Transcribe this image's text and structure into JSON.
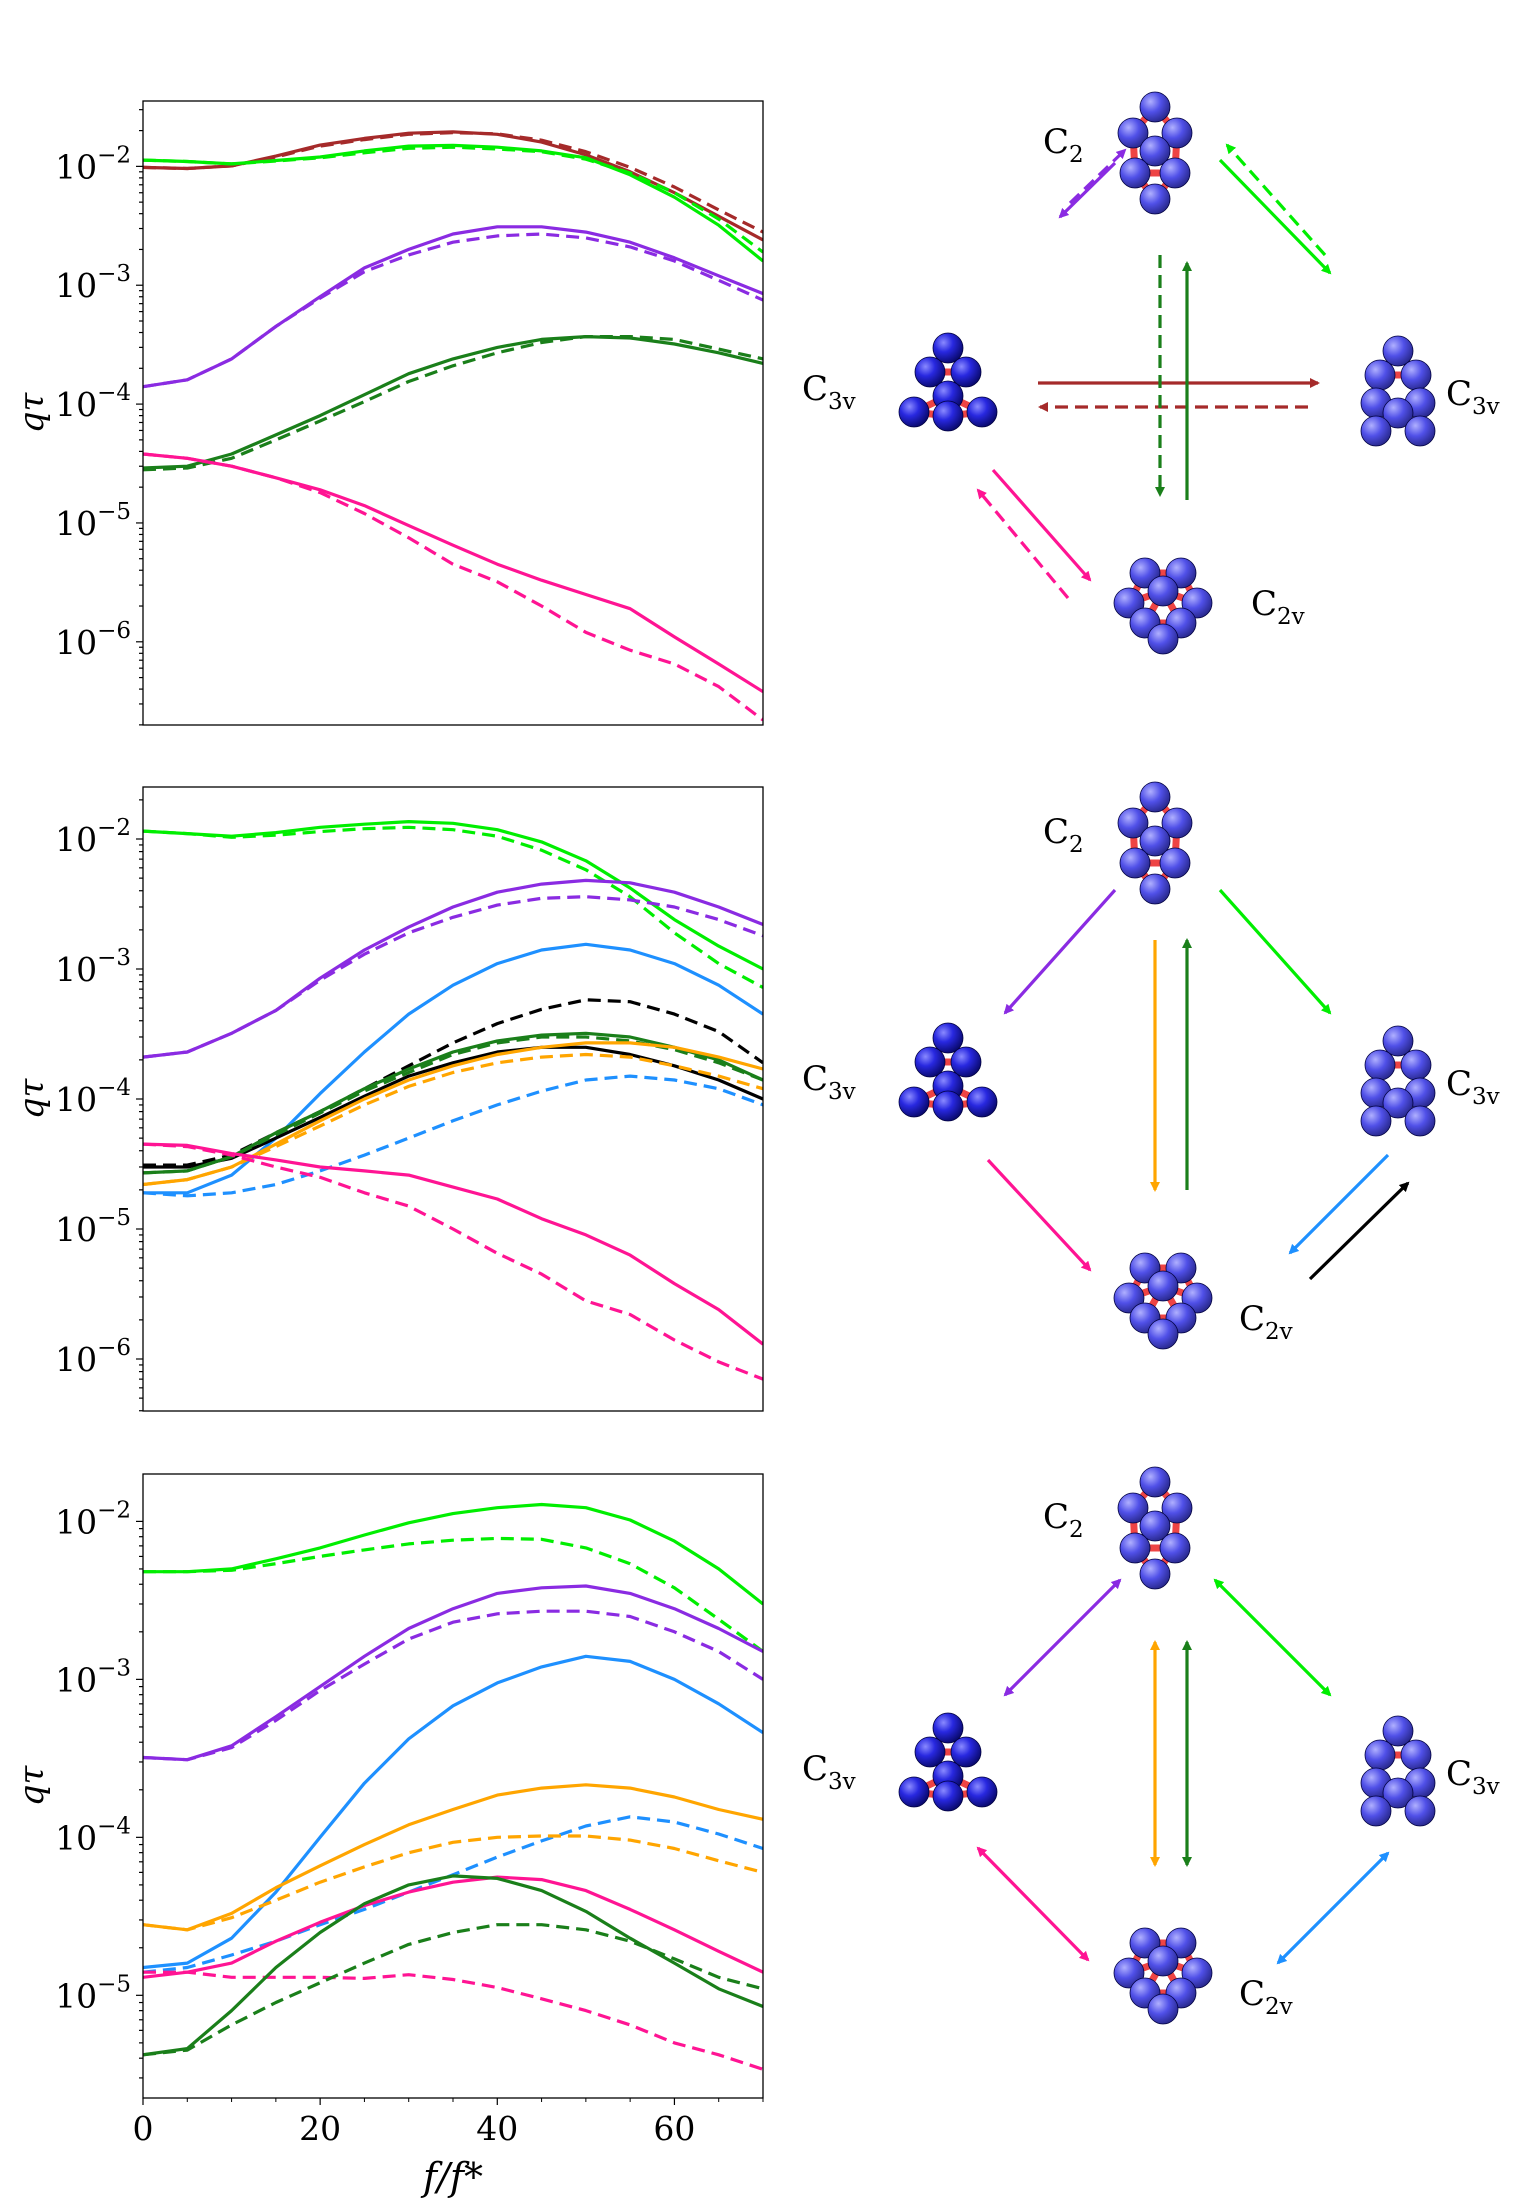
{
  "panels": [
    {
      "chart": {
        "type": "line",
        "ylabel": "qτ",
        "xlim": [
          0,
          70
        ],
        "ylim_log10": [
          -6.7,
          -1.45
        ],
        "x": [
          0,
          5,
          10,
          15,
          20,
          25,
          30,
          35,
          40,
          45,
          50,
          55,
          60,
          65,
          70
        ],
        "series": [
          {
            "color": "#a52a2a",
            "style": "solid",
            "values": [
              0.0098,
              0.0096,
              0.0101,
              0.0122,
              0.0151,
              0.0172,
              0.019,
              0.0195,
              0.0186,
              0.016,
              0.0125,
              0.009,
              0.006,
              0.0038,
              0.0024
            ]
          },
          {
            "color": "#a52a2a",
            "style": "dashed",
            "values": [
              0.0098,
              0.0096,
              0.0101,
              0.012,
              0.0148,
              0.0168,
              0.0186,
              0.0192,
              0.0188,
              0.0166,
              0.0133,
              0.0098,
              0.0067,
              0.0043,
              0.0028
            ]
          },
          {
            "color": "#00ee00",
            "style": "solid",
            "values": [
              0.0113,
              0.011,
              0.0105,
              0.0112,
              0.012,
              0.0135,
              0.0148,
              0.015,
              0.0145,
              0.0135,
              0.0118,
              0.0085,
              0.0055,
              0.0032,
              0.0016
            ]
          },
          {
            "color": "#00ee00",
            "style": "dashed",
            "values": [
              0.0113,
              0.011,
              0.0105,
              0.0111,
              0.0118,
              0.013,
              0.0142,
              0.0145,
              0.014,
              0.0133,
              0.0115,
              0.0088,
              0.006,
              0.0036,
              0.0019
            ]
          },
          {
            "color": "#8a2be2",
            "style": "solid",
            "values": [
              0.00014,
              0.00016,
              0.00024,
              0.00045,
              0.0008,
              0.0014,
              0.002,
              0.0027,
              0.0031,
              0.0031,
              0.0028,
              0.0023,
              0.0017,
              0.0012,
              0.00085
            ]
          },
          {
            "color": "#8a2be2",
            "style": "dashed",
            "values": [
              0.00014,
              0.00016,
              0.00024,
              0.00045,
              0.00078,
              0.0013,
              0.0018,
              0.0023,
              0.0026,
              0.0027,
              0.0025,
              0.0021,
              0.0016,
              0.0011,
              0.00075
            ]
          },
          {
            "color": "#1a7f1a",
            "style": "solid",
            "values": [
              2.9e-05,
              3e-05,
              3.8e-05,
              5.5e-05,
              8e-05,
              0.00012,
              0.00018,
              0.00024,
              0.0003,
              0.00035,
              0.00037,
              0.00036,
              0.00032,
              0.00027,
              0.00022
            ]
          },
          {
            "color": "#1a7f1a",
            "style": "dashed",
            "values": [
              2.8e-05,
              2.9e-05,
              3.5e-05,
              5e-05,
              7.2e-05,
              0.000105,
              0.000155,
              0.00021,
              0.00027,
              0.00033,
              0.00037,
              0.00037,
              0.00035,
              0.00029,
              0.00024
            ]
          },
          {
            "color": "#ff1493",
            "style": "solid",
            "values": [
              3.8e-05,
              3.5e-05,
              3e-05,
              2.4e-05,
              1.9e-05,
              1.4e-05,
              9.5e-06,
              6.5e-06,
              4.5e-06,
              3.3e-06,
              2.5e-06,
              1.9e-06,
              1.1e-06,
              6.5e-07,
              3.8e-07
            ]
          },
          {
            "color": "#ff1493",
            "style": "dashed",
            "values": [
              3.8e-05,
              3.5e-05,
              3e-05,
              2.4e-05,
              1.8e-05,
              1.2e-05,
              7.5e-06,
              4.5e-06,
              3.2e-06,
              2e-06,
              1.2e-06,
              8.5e-07,
              6.5e-07,
              4.2e-07,
              2.2e-07
            ]
          }
        ]
      },
      "diagram": {
        "labels": {
          "top": "C",
          "top_sub": "2",
          "left": "C",
          "left_sub": "3v",
          "right": "C",
          "right_sub": "3v",
          "bottom": "C",
          "bottom_sub": "2v"
        }
      }
    },
    {
      "chart": {
        "type": "line",
        "ylabel": "qτ",
        "xlim": [
          0,
          70
        ],
        "ylim_log10": [
          -6.4,
          -1.6
        ],
        "x": [
          0,
          5,
          10,
          15,
          20,
          25,
          30,
          35,
          40,
          45,
          50,
          55,
          60,
          65,
          70
        ],
        "series": [
          {
            "color": "#00ee00",
            "style": "solid",
            "values": [
              0.0115,
              0.011,
              0.0105,
              0.0112,
              0.0123,
              0.013,
              0.0136,
              0.0132,
              0.0118,
              0.0095,
              0.0068,
              0.0042,
              0.0024,
              0.0015,
              0.001
            ]
          },
          {
            "color": "#00ee00",
            "style": "dashed",
            "values": [
              0.0115,
              0.011,
              0.0103,
              0.0107,
              0.0114,
              0.012,
              0.0123,
              0.0118,
              0.0105,
              0.0082,
              0.0058,
              0.0036,
              0.0019,
              0.0011,
              0.00072
            ]
          },
          {
            "color": "#8a2be2",
            "style": "solid",
            "values": [
              0.00021,
              0.00023,
              0.00032,
              0.00048,
              0.00085,
              0.0014,
              0.0021,
              0.003,
              0.0039,
              0.0045,
              0.0048,
              0.0046,
              0.0039,
              0.003,
              0.0022
            ]
          },
          {
            "color": "#8a2be2",
            "style": "dashed",
            "values": [
              0.00021,
              0.00023,
              0.00032,
              0.00048,
              0.00082,
              0.0013,
              0.0019,
              0.0025,
              0.0031,
              0.0035,
              0.0036,
              0.0034,
              0.003,
              0.0024,
              0.0018
            ]
          },
          {
            "color": "#1e90ff",
            "style": "solid",
            "values": [
              1.9e-05,
              1.9e-05,
              2.6e-05,
              5e-05,
              0.00011,
              0.00023,
              0.00045,
              0.00075,
              0.0011,
              0.0014,
              0.00155,
              0.0014,
              0.0011,
              0.00075,
              0.00045
            ]
          },
          {
            "color": "#1e90ff",
            "style": "dashed",
            "values": [
              1.9e-05,
              1.8e-05,
              1.9e-05,
              2.2e-05,
              2.8e-05,
              3.7e-05,
              5e-05,
              6.8e-05,
              9e-05,
              0.000115,
              0.00014,
              0.00015,
              0.00014,
              0.00012,
              9e-05
            ]
          },
          {
            "color": "#000000",
            "style": "dashed",
            "values": [
              3.1e-05,
              3.1e-05,
              3.7e-05,
              5.5e-05,
              8e-05,
              0.00012,
              0.00018,
              0.00027,
              0.00038,
              0.00049,
              0.00058,
              0.00056,
              0.00045,
              0.00033,
              0.00019
            ]
          },
          {
            "color": "#000000",
            "style": "solid",
            "values": [
              3e-05,
              3e-05,
              3.5e-05,
              5e-05,
              7.2e-05,
              0.000105,
              0.00015,
              0.00019,
              0.00023,
              0.00025,
              0.00025,
              0.00022,
              0.00018,
              0.00014,
              0.0001
            ]
          },
          {
            "color": "#1a7f1a",
            "style": "solid",
            "values": [
              2.7e-05,
              2.8e-05,
              3.6e-05,
              5.5e-05,
              8e-05,
              0.00012,
              0.00017,
              0.00023,
              0.00028,
              0.00031,
              0.00032,
              0.0003,
              0.00025,
              0.0002,
              0.00014
            ]
          },
          {
            "color": "#1a7f1a",
            "style": "dashed",
            "values": [
              2.7e-05,
              2.8e-05,
              3.6e-05,
              5.3e-05,
              7.8e-05,
              0.000115,
              0.00016,
              0.00022,
              0.00027,
              0.0003,
              0.0003,
              0.00028,
              0.00024,
              0.00019,
              0.00014
            ]
          },
          {
            "color": "#ffa500",
            "style": "solid",
            "values": [
              2.2e-05,
              2.4e-05,
              3e-05,
              4.5e-05,
              6.8e-05,
              0.0001,
              0.00014,
              0.00018,
              0.00022,
              0.00025,
              0.00027,
              0.00027,
              0.00025,
              0.00021,
              0.00017
            ]
          },
          {
            "color": "#ffa500",
            "style": "dashed",
            "values": [
              2.2e-05,
              2.4e-05,
              3e-05,
              4.3e-05,
              6.2e-05,
              9e-05,
              0.000125,
              0.00016,
              0.00019,
              0.00021,
              0.00022,
              0.00021,
              0.00018,
              0.00015,
              0.00012
            ]
          },
          {
            "color": "#ff1493",
            "style": "solid",
            "values": [
              4.5e-05,
              4.4e-05,
              3.8e-05,
              3.4e-05,
              3e-05,
              2.8e-05,
              2.6e-05,
              2.1e-05,
              1.7e-05,
              1.2e-05,
              9e-06,
              6.3e-06,
              3.8e-06,
              2.4e-06,
              1.3e-06
            ]
          },
          {
            "color": "#ff1493",
            "style": "dashed",
            "values": [
              4.5e-05,
              4.3e-05,
              3.7e-05,
              3e-05,
              2.5e-05,
              1.9e-05,
              1.5e-05,
              1e-05,
              6.5e-06,
              4.5e-06,
              2.8e-06,
              2.2e-06,
              1.4e-06,
              9.5e-07,
              7e-07
            ]
          }
        ]
      },
      "diagram": {
        "labels": {
          "top": "C",
          "top_sub": "2",
          "left": "C",
          "left_sub": "3v",
          "right": "C",
          "right_sub": "3v",
          "bottom": "C",
          "bottom_sub": "2v"
        }
      }
    },
    {
      "chart": {
        "type": "line",
        "ylabel": "qτ",
        "xlabel": "f/f*",
        "xlim": [
          0,
          70
        ],
        "xticks": [
          0,
          20,
          40,
          60
        ],
        "ylim_log10": [
          -5.65,
          -1.7
        ],
        "x": [
          0,
          5,
          10,
          15,
          20,
          25,
          30,
          35,
          40,
          45,
          50,
          55,
          60,
          65,
          70
        ],
        "series": [
          {
            "color": "#00ee00",
            "style": "solid",
            "values": [
              0.0048,
              0.0048,
              0.005,
              0.0058,
              0.0068,
              0.0082,
              0.0098,
              0.0112,
              0.0122,
              0.0128,
              0.0122,
              0.0102,
              0.0075,
              0.005,
              0.003
            ]
          },
          {
            "color": "#00ee00",
            "style": "dashed",
            "values": [
              0.0048,
              0.0048,
              0.0049,
              0.0054,
              0.006,
              0.0066,
              0.0072,
              0.0076,
              0.0078,
              0.0077,
              0.0068,
              0.0054,
              0.0038,
              0.0024,
              0.0015
            ]
          },
          {
            "color": "#8a2be2",
            "style": "solid",
            "values": [
              0.00032,
              0.00031,
              0.00038,
              0.00058,
              0.0009,
              0.0014,
              0.0021,
              0.0028,
              0.0035,
              0.0038,
              0.0039,
              0.0035,
              0.0028,
              0.0021,
              0.0015
            ]
          },
          {
            "color": "#8a2be2",
            "style": "dashed",
            "values": [
              0.00032,
              0.00031,
              0.00037,
              0.00055,
              0.00085,
              0.00125,
              0.0018,
              0.0023,
              0.0026,
              0.0027,
              0.0027,
              0.0025,
              0.002,
              0.0015,
              0.001
            ]
          },
          {
            "color": "#1e90ff",
            "style": "solid",
            "values": [
              1.5e-05,
              1.6e-05,
              2.3e-05,
              4.5e-05,
              0.0001,
              0.00022,
              0.00042,
              0.00068,
              0.00095,
              0.0012,
              0.0014,
              0.0013,
              0.001,
              0.0007,
              0.00046
            ]
          },
          {
            "color": "#1e90ff",
            "style": "dashed",
            "values": [
              1.4e-05,
              1.5e-05,
              1.8e-05,
              2.2e-05,
              2.8e-05,
              3.5e-05,
              4.5e-05,
              5.8e-05,
              7.5e-05,
              9.5e-05,
              0.000118,
              0.000135,
              0.000125,
              0.000105,
              8.5e-05
            ]
          },
          {
            "color": "#ffa500",
            "style": "solid",
            "values": [
              2.8e-05,
              2.6e-05,
              3.3e-05,
              4.8e-05,
              6.6e-05,
              9e-05,
              0.00012,
              0.00015,
              0.000185,
              0.000205,
              0.000215,
              0.000205,
              0.00018,
              0.00015,
              0.00013
            ]
          },
          {
            "color": "#ffa500",
            "style": "dashed",
            "values": [
              2.8e-05,
              2.6e-05,
              3.1e-05,
              4e-05,
              5.2e-05,
              6.5e-05,
              8e-05,
              9.3e-05,
              0.0001,
              0.000102,
              0.000102,
              9.6e-05,
              8.5e-05,
              7.1e-05,
              6e-05
            ]
          },
          {
            "color": "#ff1493",
            "style": "solid",
            "values": [
              1.3e-05,
              1.4e-05,
              1.6e-05,
              2.2e-05,
              2.9e-05,
              3.7e-05,
              4.5e-05,
              5.2e-05,
              5.6e-05,
              5.4e-05,
              4.6e-05,
              3.5e-05,
              2.6e-05,
              1.9e-05,
              1.4e-05
            ]
          },
          {
            "color": "#ff1493",
            "style": "dashed",
            "values": [
              1.4e-05,
              1.4e-05,
              1.3e-05,
              1.3e-05,
              1.3e-05,
              1.28e-05,
              1.35e-05,
              1.26e-05,
              1.12e-05,
              9.5e-06,
              8e-06,
              6.5e-06,
              5e-06,
              4.2e-06,
              3.4e-06
            ]
          },
          {
            "color": "#1a7f1a",
            "style": "solid",
            "values": [
              4.2e-06,
              4.6e-06,
              8e-06,
              1.5e-05,
              2.5e-05,
              3.8e-05,
              5e-05,
              5.7e-05,
              5.5e-05,
              4.6e-05,
              3.4e-05,
              2.3e-05,
              1.6e-05,
              1.1e-05,
              8.5e-06
            ]
          },
          {
            "color": "#1a7f1a",
            "style": "dashed",
            "values": [
              4.2e-06,
              4.5e-06,
              6.5e-06,
              9e-06,
              1.2e-05,
              1.6e-05,
              2.1e-05,
              2.5e-05,
              2.8e-05,
              2.8e-05,
              2.6e-05,
              2.2e-05,
              1.7e-05,
              1.3e-05,
              1.1e-05
            ]
          }
        ]
      },
      "diagram": {
        "labels": {
          "top": "C",
          "top_sub": "2",
          "left": "C",
          "left_sub": "3v",
          "right": "C",
          "right_sub": "3v",
          "bottom": "C",
          "bottom_sub": "2v"
        }
      }
    }
  ]
}
